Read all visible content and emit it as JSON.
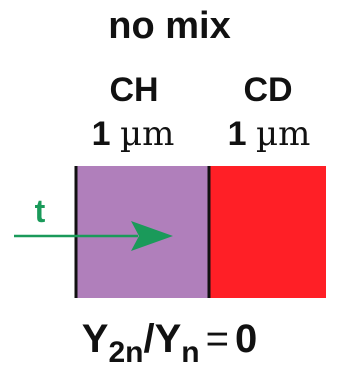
{
  "title": "no mix",
  "layers": [
    {
      "material": "CH",
      "thickness_value": "1",
      "thickness_unit": "µm",
      "color": "#b07fbb"
    },
    {
      "material": "CD",
      "thickness_value": "1",
      "thickness_unit": "µm",
      "color": "#ff1f26"
    }
  ],
  "arrow": {
    "label": "t",
    "color": "#1a9a5a"
  },
  "equation": {
    "numerator_base": "Y",
    "numerator_sub": "2n",
    "slash": "/",
    "denominator_base": "Y",
    "denominator_sub": "n",
    "equals": "=",
    "value": "0"
  }
}
